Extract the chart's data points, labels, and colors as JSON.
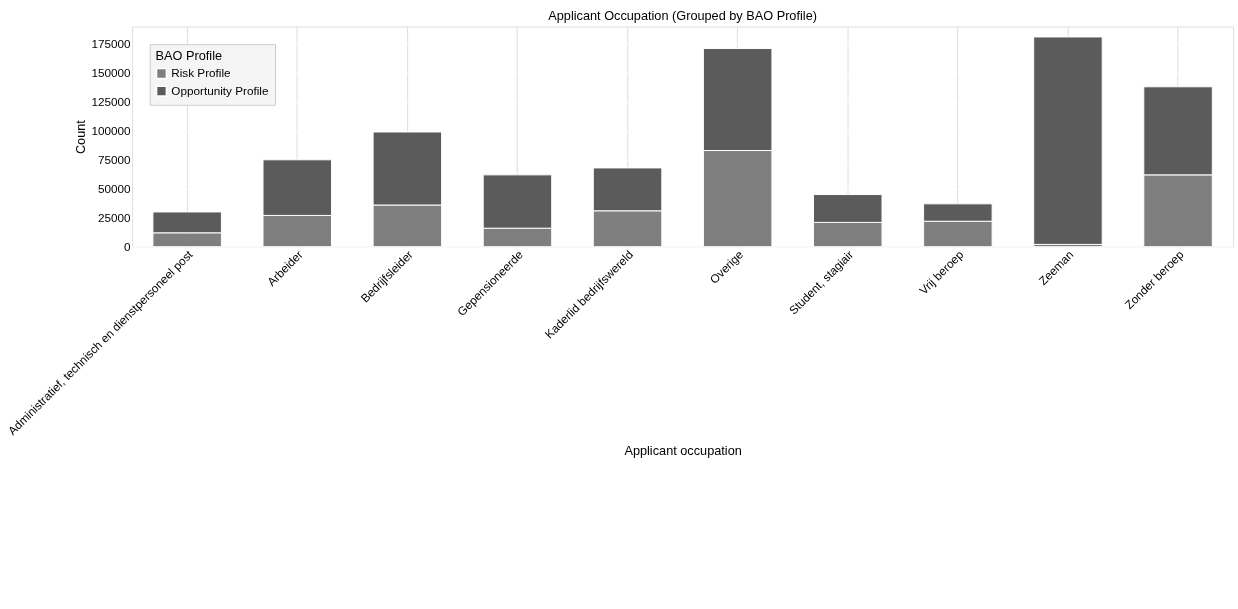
{
  "chart_data": {
    "type": "bar",
    "title": "Applicant Occupation (Grouped by BAO Profile)",
    "xlabel": "Applicant occupation",
    "ylabel": "Count",
    "legend_title": "BAO Profile",
    "categories": [
      "Administratief, technisch en dienstpersoneel post",
      "Arbeider",
      "Bedrijfsleider",
      "Gepensioneerde",
      "Kaderlid bedrijfswereld",
      "Overige",
      "Student, stagiair",
      "Vrij beroep",
      "Zeeman",
      "Zonder beroep"
    ],
    "series": [
      {
        "name": "Risk Profile",
        "color": "#7f7f7f",
        "values": [
          12000,
          27000,
          36000,
          16000,
          31000,
          83000,
          21000,
          22000,
          2000,
          62000
        ]
      },
      {
        "name": "Opportunity Profile",
        "color": "#5b5b5b",
        "values": [
          18000,
          48000,
          63000,
          46000,
          37000,
          88000,
          24000,
          15000,
          179000,
          76000
        ]
      }
    ],
    "stacked": true,
    "ylim": [
      0,
      190000
    ],
    "yticks": [
      0,
      25000,
      50000,
      75000,
      100000,
      125000,
      150000,
      175000
    ],
    "grid": true,
    "legend": "top left"
  }
}
